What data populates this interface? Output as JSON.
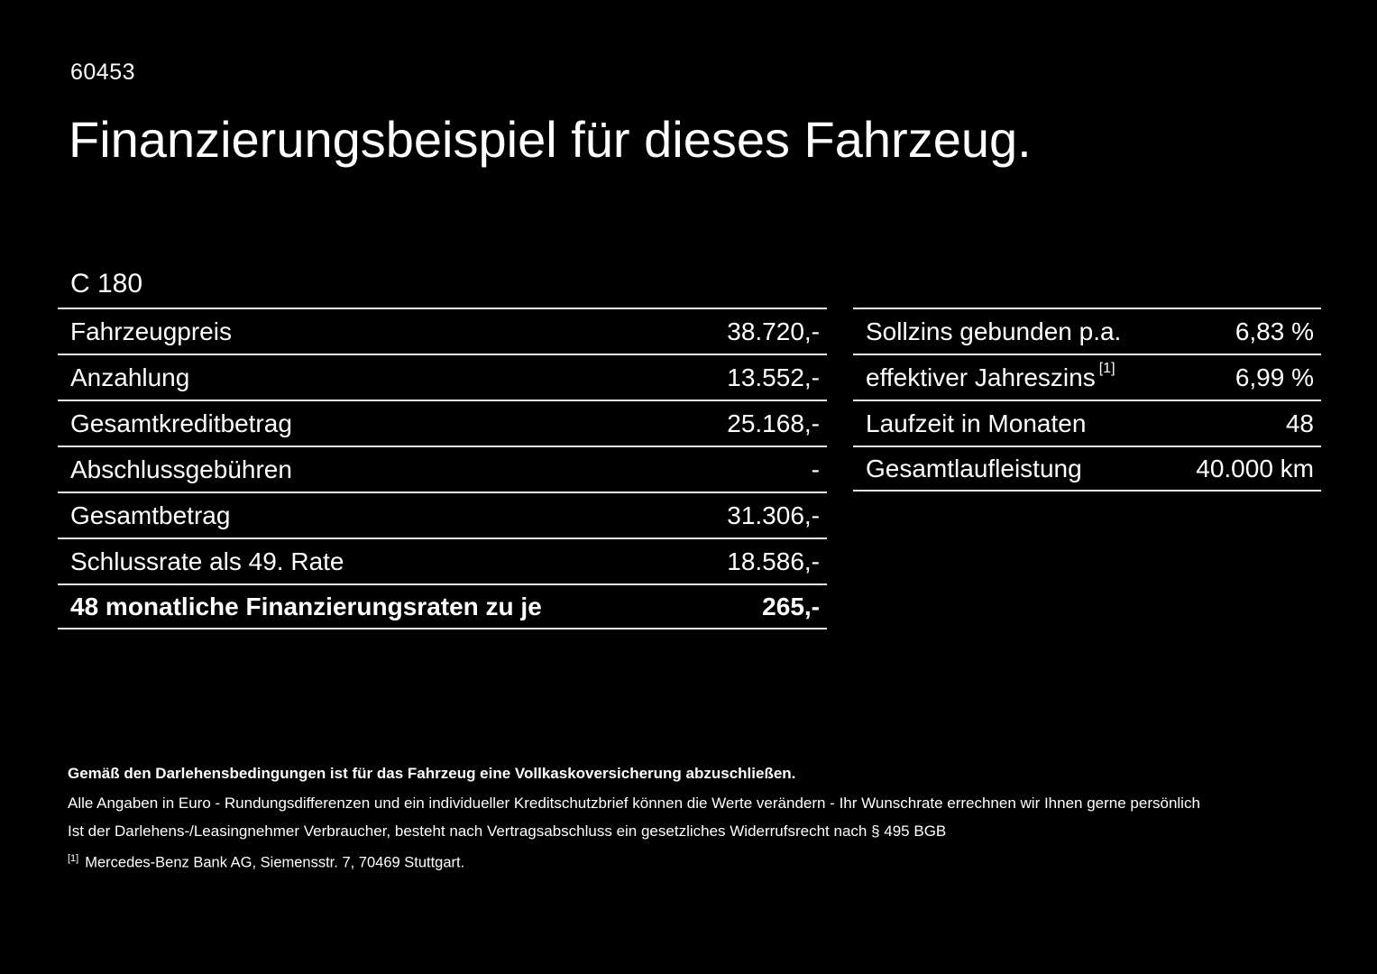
{
  "page": {
    "doc_id": "60453",
    "title": "Finanzierungsbeispiel für dieses Fahrzeug.",
    "model": "C 180"
  },
  "left_table": {
    "rows": [
      {
        "label": "Fahrzeugpreis",
        "value": "38.720,-"
      },
      {
        "label": "Anzahlung",
        "value": "13.552,-"
      },
      {
        "label": "Gesamtkreditbetrag",
        "value": "25.168,-"
      },
      {
        "label": "Abschlussgebühren",
        "value": "-"
      },
      {
        "label": "Gesamtbetrag",
        "value": "31.306,-"
      },
      {
        "label": "Schlussrate als 49. Rate",
        "value": "18.586,-"
      },
      {
        "label": "48 monatliche Finanzierungsraten zu je",
        "value": "265,-"
      }
    ]
  },
  "right_table": {
    "rows": [
      {
        "label": "Sollzins gebunden p.a.",
        "sup": "",
        "value": "6,83 %"
      },
      {
        "label": "effektiver Jahreszins",
        "sup": "[1]",
        "value": "6,99 %"
      },
      {
        "label": "Laufzeit in Monaten",
        "sup": "",
        "value": "48"
      },
      {
        "label": "Gesamtlaufleistung",
        "sup": "",
        "value": "40.000 km"
      }
    ]
  },
  "footer": {
    "bold_note": "Gemäß den Darlehensbedingungen ist für das Fahrzeug eine Vollkaskoversicherung abzuschließen.",
    "note1": "Alle Angaben in Euro - Rundungsdifferenzen und ein individueller Kreditschutzbrief können die Werte verändern - Ihr Wunschrate errechnen wir Ihnen gerne persönlich",
    "note2": "Ist der Darlehens-/Leasingnehmer Verbraucher, besteht nach Vertragsabschluss ein gesetzliches Widerrufsrecht nach § 495 BGB",
    "footnote_marker": "[1]",
    "footnote_text": "Mercedes-Benz Bank AG, Siemensstr. 7, 70469 Stuttgart."
  }
}
